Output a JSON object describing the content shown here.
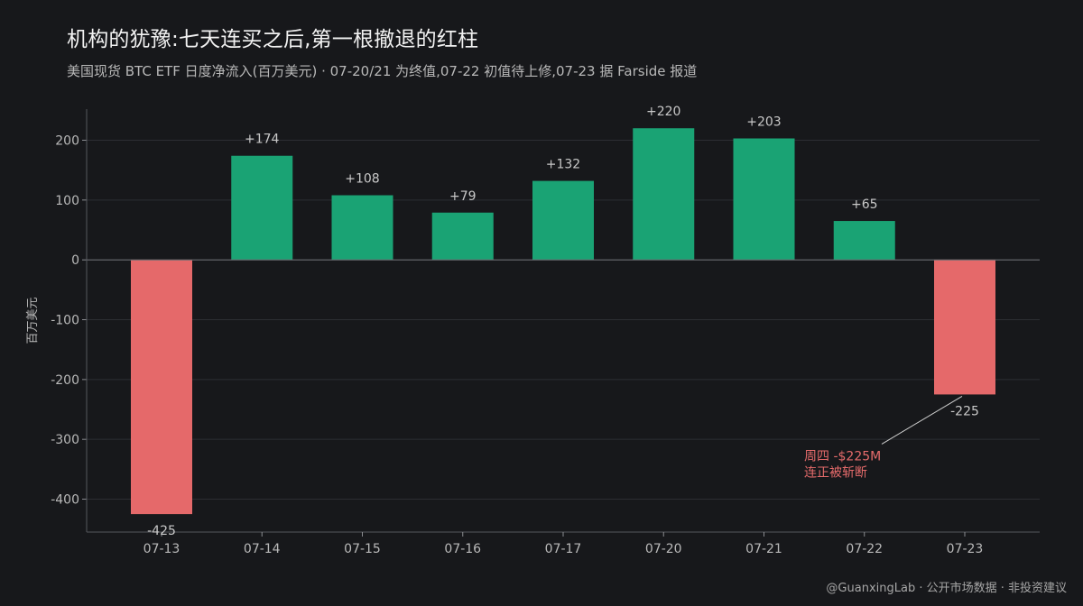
{
  "header": {
    "title": "机构的犹豫:七天连买之后,第一根撤退的红柱",
    "subtitle": "美国现货 BTC ETF 日度净流入(百万美元) · 07-20/21 为终值,07-22 初值待上修,07-23 据 Farside 报道"
  },
  "footer": {
    "credit": "@GuanxingLab · 公开市场数据 · 非投资建议"
  },
  "colors": {
    "positive": "#1aa374",
    "negative": "#e5696a",
    "background": "#17181b",
    "grid": "#2c2e33",
    "zero_line": "#6b6d72",
    "annotation": "#e56b6b"
  },
  "chart_data": {
    "type": "bar",
    "categories": [
      "07-13",
      "07-14",
      "07-15",
      "07-16",
      "07-17",
      "07-20",
      "07-21",
      "07-22",
      "07-23"
    ],
    "values": [
      -425,
      174,
      108,
      79,
      132,
      220,
      203,
      65,
      -225
    ],
    "value_labels": [
      "-425",
      "+174",
      "+108",
      "+79",
      "+132",
      "+220",
      "+203",
      "+65",
      "-225"
    ],
    "ylabel": "百万美元",
    "ylim": [
      -455,
      252
    ],
    "yticks": [
      200,
      100,
      0,
      -100,
      -200,
      -300,
      -400
    ],
    "ytick_labels": [
      "200",
      "100",
      "0",
      "-100",
      "-200",
      "-300",
      "-400"
    ],
    "grid": true,
    "annotation": {
      "category": "07-23",
      "lines": [
        "周四 -$225M",
        "连正被斩断"
      ]
    }
  }
}
